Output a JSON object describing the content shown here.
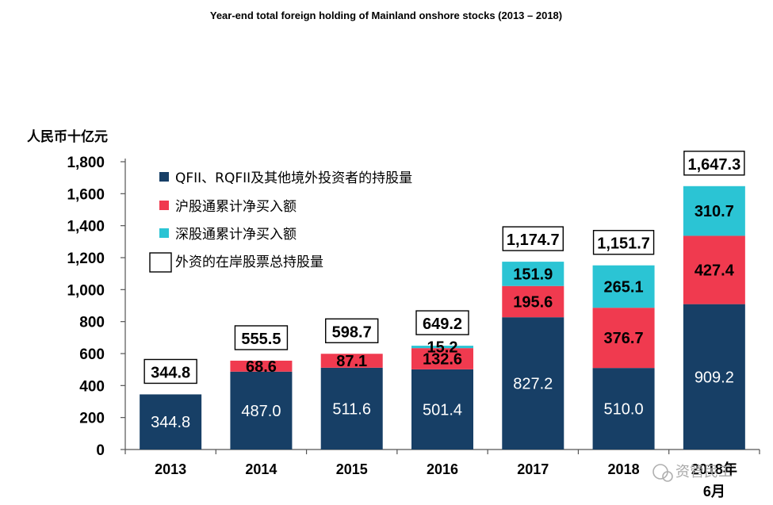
{
  "chart_data": {
    "type": "bar",
    "stacked": true,
    "title": "Year-end total foreign holding of Mainland onshore stocks (2013 – 2018)",
    "ylabel": "人民币十亿元",
    "xlabel": "",
    "ylim": [
      0,
      1800
    ],
    "yticks": [
      0,
      200,
      400,
      600,
      800,
      1000,
      1200,
      1400,
      1600,
      1800
    ],
    "ytick_labels": [
      "0",
      "200",
      "400",
      "600",
      "800",
      "1,000",
      "1,200",
      "1,400",
      "1,600",
      "1,800"
    ],
    "categories": [
      "2013",
      "2014",
      "2015",
      "2016",
      "2017",
      "2018",
      "2018年\n6月"
    ],
    "category_labels": [
      "2013",
      "2014",
      "2015",
      "2016",
      "2017",
      "2018",
      "2018年"
    ],
    "category_sublabels": [
      "",
      "",
      "",
      "",
      "",
      "",
      "6月"
    ],
    "series": [
      {
        "name": "QFII、RQFII及其他境外投资者的持股量",
        "color": "#173f66",
        "values": [
          344.8,
          487.0,
          511.6,
          501.4,
          827.2,
          510.0,
          909.2
        ],
        "labels": [
          "344.8",
          "487.0",
          "511.6",
          "501.4",
          "827.2",
          "510.0",
          "909.2"
        ]
      },
      {
        "name": "沪股通累计净买入额",
        "color": "#f03a4f",
        "values": [
          0,
          68.6,
          87.1,
          132.6,
          195.6,
          376.7,
          427.4
        ],
        "labels": [
          "",
          "68.6",
          "87.1",
          "132.6",
          "195.6",
          "376.7",
          "427.4"
        ]
      },
      {
        "name": "深股通累计净买入额",
        "color": "#2bc4d4",
        "values": [
          0,
          0,
          0,
          15.2,
          151.9,
          265.1,
          310.7
        ],
        "labels": [
          "",
          "",
          "",
          "15.2",
          "151.9",
          "265.1",
          "310.7"
        ]
      }
    ],
    "totals": {
      "name": "外资的在岸股票总持股量",
      "values": [
        344.8,
        555.5,
        598.7,
        649.2,
        1174.7,
        1151.7,
        1647.3
      ],
      "labels": [
        "344.8",
        "555.5",
        "598.7",
        "649.2",
        "1,174.7",
        "1,151.7",
        "1,647.3"
      ]
    },
    "legend_position": "top-left",
    "grid": false
  },
  "watermark": "资管民工"
}
